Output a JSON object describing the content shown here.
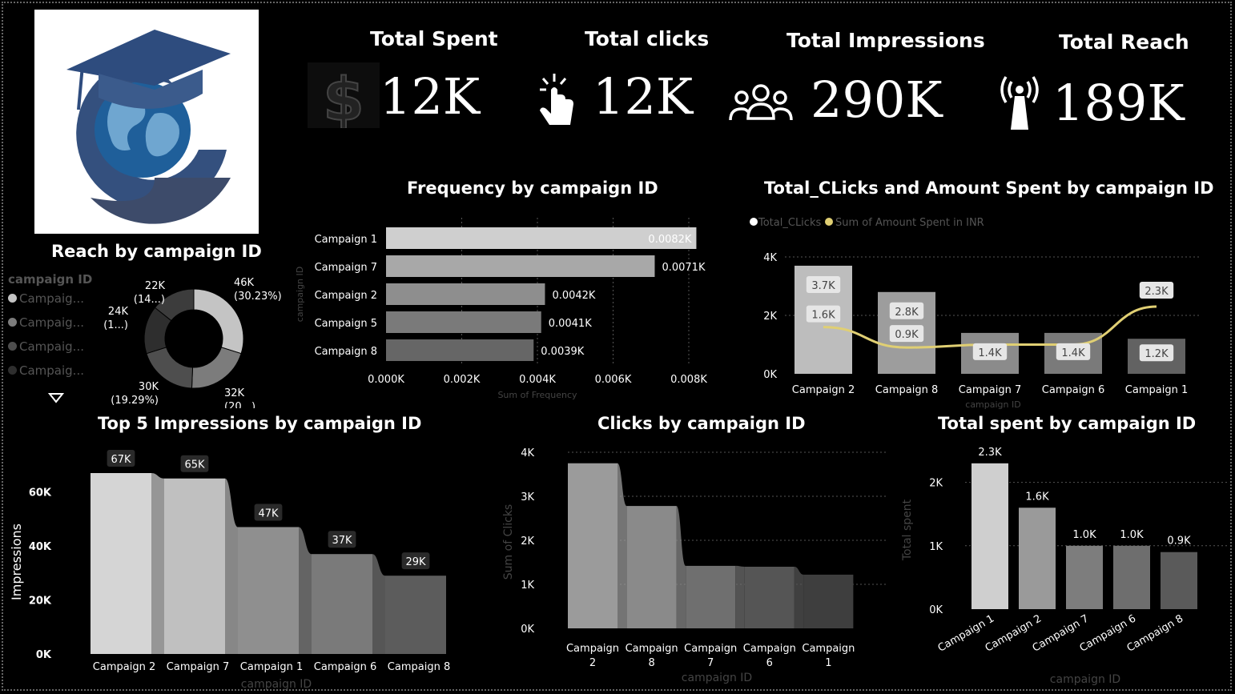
{
  "colors": {
    "background": "#000000",
    "bar_light": "#cfcfcf",
    "bar_mid": "#9a9a9a",
    "bar_dark": "#5a5a5a",
    "line_accent": "#e0cf73",
    "muted_label": "#555555"
  },
  "kpis": [
    {
      "title": "Total Spent",
      "value": "12K",
      "icon": "dollar-icon"
    },
    {
      "title": "Total clicks",
      "value": "12K",
      "icon": "pointer-click-icon"
    },
    {
      "title": "Total Impressions",
      "value": "290K",
      "icon": "people-group-icon"
    },
    {
      "title": "Total Reach",
      "value": "189K",
      "icon": "broadcast-tower-icon"
    }
  ],
  "reach_legend": {
    "title": "campaign ID",
    "items": [
      "Campaig...",
      "Campaig...",
      "Campaig...",
      "Campaig..."
    ],
    "more_icon": "triangle-down-icon"
  },
  "charts": [
    {
      "id": "reach",
      "chart_data": {
        "type": "pie",
        "title": "Reach by campaign ID",
        "labels": [
          "46K (30.23%)",
          "32K (20...)",
          "30K (19.29%)",
          "24K (1...)",
          "22K (14...)"
        ],
        "values": [
          46,
          32,
          30,
          24,
          22
        ],
        "colors": [
          "#c4c4c4",
          "#7c7c7c",
          "#4e4e4e",
          "#2e2e2e",
          "#3c3c3c"
        ]
      }
    },
    {
      "id": "frequency",
      "chart_data": {
        "type": "bar",
        "orientation": "horizontal",
        "title": "Frequency by campaign ID",
        "xlabel": "Sum of Frequency",
        "ylabel": "campaign ID",
        "categories": [
          "Campaign 1",
          "Campaign 7",
          "Campaign 2",
          "Campaign 5",
          "Campaign 8"
        ],
        "values": [
          0.0082,
          0.0071,
          0.0042,
          0.0041,
          0.0039
        ],
        "data_labels": [
          "0.0082K",
          "0.0071K",
          "0.0042K",
          "0.0041K",
          "0.0039K"
        ],
        "xlim": [
          0,
          0.008
        ],
        "ticks": [
          "0.000K",
          "0.002K",
          "0.004K",
          "0.006K",
          "0.008K"
        ],
        "colors": [
          "#cfcfcf",
          "#a8a8a8",
          "#8e8e8e",
          "#7a7a7a",
          "#666666"
        ],
        "grid": true
      }
    },
    {
      "id": "clicks_spent",
      "chart_data": {
        "type": "bar",
        "combo_line": true,
        "title": "Total_CLicks and Amount Spent by campaign ID",
        "xlabel": "campaign ID",
        "ylabel": "",
        "legend": [
          "Total_CLicks",
          "Sum of Amount Spent in INR"
        ],
        "categories": [
          "Campaign 2",
          "Campaign 8",
          "Campaign 7",
          "Campaign 6",
          "Campaign 1"
        ],
        "series": [
          {
            "name": "Total_CLicks",
            "values": [
              3.7,
              2.8,
              1.4,
              1.4,
              1.2
            ],
            "data_labels": [
              "3.7K",
              "2.8K",
              "1.4K",
              "1.4K",
              "1.2K"
            ]
          },
          {
            "name": "Sum of Amount Spent in INR",
            "values": [
              1.6,
              0.9,
              1.0,
              1.0,
              2.3
            ],
            "data_labels": [
              "1.6K",
              "0.9K",
              "",
              "",
              "2.3K"
            ]
          }
        ],
        "ylim": [
          0,
          4
        ],
        "ticks": [
          "0K",
          "2K",
          "4K"
        ],
        "colors": [
          "#bdbdbd",
          "#9d9d9d",
          "#8b8b8b",
          "#7a7a7a",
          "#626262"
        ],
        "grid": true
      }
    },
    {
      "id": "impressions",
      "chart_data": {
        "type": "area",
        "title": "Top 5 Impressions by campaign ID",
        "xlabel": "campaign ID",
        "ylabel": "Impressions",
        "categories": [
          "Campaign 2",
          "Campaign 7",
          "Campaign 1",
          "Campaign 6",
          "Campaign 8"
        ],
        "values": [
          67,
          65,
          47,
          37,
          29
        ],
        "data_labels": [
          "67K",
          "65K",
          "47K",
          "37K",
          "29K"
        ],
        "ylim": [
          0,
          67
        ],
        "ticks": [
          "0K",
          "20K",
          "40K",
          "60K"
        ],
        "colors": [
          "#d5d5d5",
          "#c0c0c0",
          "#8f8f8f",
          "#7a7a7a",
          "#5c5c5c"
        ]
      }
    },
    {
      "id": "clicks",
      "chart_data": {
        "type": "area",
        "title": "Clicks by campaign ID",
        "xlabel": "campaign ID",
        "ylabel": "Sum of Clicks",
        "categories": [
          "Campaign 2",
          "Campaign 8",
          "Campaign 7",
          "Campaign 6",
          "Campaign 1"
        ],
        "values": [
          3.75,
          2.78,
          1.42,
          1.4,
          1.22
        ],
        "ylim": [
          0,
          4
        ],
        "ticks": [
          "0K",
          "1K",
          "2K",
          "3K",
          "4K"
        ],
        "colors": [
          "#9b9b9b",
          "#8a8a8a",
          "#6f6f6f",
          "#555555",
          "#3e3e3e"
        ],
        "grid": true
      }
    },
    {
      "id": "spent",
      "chart_data": {
        "type": "bar",
        "title": "Total spent by campaign ID",
        "xlabel": "campaign ID",
        "ylabel": "Total spent",
        "categories": [
          "Campaign 1",
          "Campaign 2",
          "Campaign 7",
          "Campaign 6",
          "Campaign 8"
        ],
        "values": [
          2.3,
          1.6,
          1.0,
          1.0,
          0.9
        ],
        "data_labels": [
          "2.3K",
          "1.6K",
          "1.0K",
          "1.0K",
          "0.9K"
        ],
        "ylim": [
          0,
          2.5
        ],
        "ticks": [
          "0K",
          "1K",
          "2K"
        ],
        "colors": [
          "#cfcfcf",
          "#9a9a9a",
          "#7d7d7d",
          "#6e6e6e",
          "#5a5a5a"
        ],
        "grid": true
      }
    }
  ]
}
